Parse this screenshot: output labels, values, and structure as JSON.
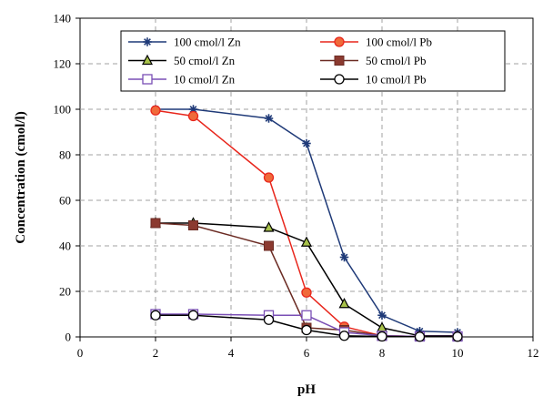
{
  "chart_data": {
    "type": "line",
    "xlabel": "pH",
    "ylabel": "Concentration (cmol/l)",
    "xlim": [
      0,
      12
    ],
    "ylim": [
      0,
      140
    ],
    "xticks": [
      0,
      2,
      4,
      6,
      8,
      10,
      12
    ],
    "yticks": [
      0,
      20,
      40,
      60,
      80,
      100,
      120,
      140
    ],
    "grid": true,
    "legend_position": "top",
    "series": [
      {
        "name": "100 cmol/l Zn",
        "marker": "star",
        "color": "#1f3a78",
        "x": [
          2,
          3,
          5,
          6,
          7,
          8,
          9,
          10
        ],
        "y": [
          100,
          100,
          96,
          85,
          35,
          9.5,
          2.5,
          2
        ]
      },
      {
        "name": "100 cmol/l Pb",
        "marker": "circle-filled",
        "color": "#e8261c",
        "fill": "#f06a3a",
        "x": [
          2,
          3,
          5,
          6,
          7,
          8,
          9,
          10
        ],
        "y": [
          99.5,
          97,
          70,
          19.5,
          4.5,
          0.5,
          0.2,
          0.2
        ]
      },
      {
        "name": "50 cmol/l Zn",
        "marker": "triangle-filled",
        "color": "#000000",
        "fill": "#a8c24a",
        "x": [
          2,
          3,
          5,
          6,
          7,
          8,
          9,
          10
        ],
        "y": [
          50,
          50,
          48,
          41.5,
          14.5,
          4,
          0.5,
          0.5
        ]
      },
      {
        "name": "50 cmol/l Pb",
        "marker": "square-filled",
        "color": "#6b2b23",
        "fill": "#8b3a30",
        "x": [
          2,
          3,
          5,
          6,
          7,
          8,
          9,
          10
        ],
        "y": [
          50,
          49,
          40,
          4,
          3,
          0.5,
          0.2,
          0.2
        ]
      },
      {
        "name": "10 cmol/l Zn",
        "marker": "square-open",
        "color": "#7a4fb5",
        "x": [
          2,
          3,
          5,
          6,
          7,
          8,
          9,
          10
        ],
        "y": [
          10,
          10,
          9.5,
          9.5,
          2,
          0.5,
          0.2,
          0.2
        ]
      },
      {
        "name": "10 cmol/l Pb",
        "marker": "circle-open",
        "color": "#000000",
        "x": [
          2,
          3,
          5,
          6,
          7,
          8,
          9,
          10
        ],
        "y": [
          9.5,
          9.5,
          7.5,
          3,
          0.5,
          0.2,
          0.1,
          0.1
        ]
      }
    ]
  }
}
